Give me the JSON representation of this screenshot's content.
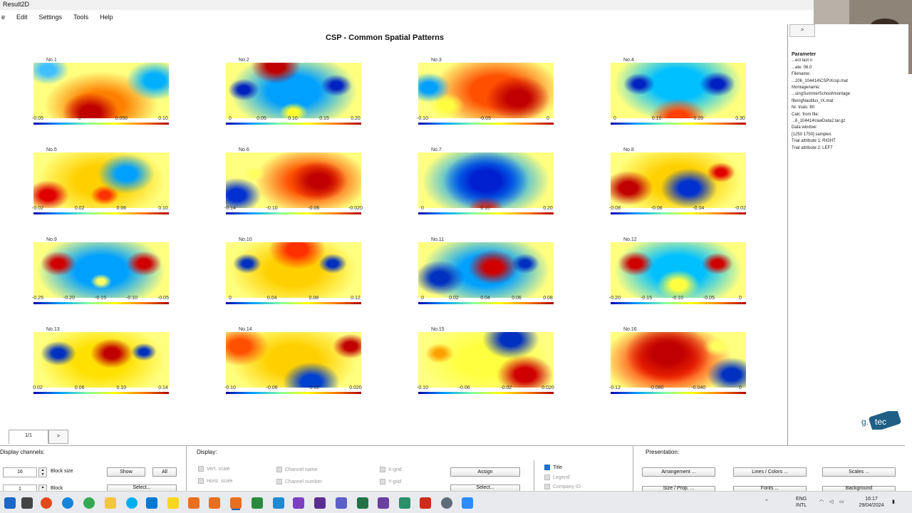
{
  "window": {
    "title": "Result2D"
  },
  "menu": [
    "e",
    "Edit",
    "Settings",
    "Tools",
    "Help"
  ],
  "main_title": "CSP - Common Spatial Patterns",
  "plots": [
    {
      "label": "No.1",
      "ticks": [
        "-0.05",
        "0",
        "0.050",
        "0.10"
      ]
    },
    {
      "label": "No.2",
      "ticks": [
        "0",
        "0.05",
        "0.10",
        "0.15",
        "0.20"
      ]
    },
    {
      "label": "No.3",
      "ticks": [
        "-0.10",
        "-0.05",
        "0"
      ]
    },
    {
      "label": "No.4",
      "ticks": [
        "0",
        "0.10",
        "0.20",
        "0.30"
      ]
    },
    {
      "label": "No.5",
      "ticks": [
        "-0.02",
        "0.02",
        "0.06",
        "0.10"
      ]
    },
    {
      "label": "No.6",
      "ticks": [
        "-0.14",
        "-0.10",
        "-0.06",
        "-0.020"
      ]
    },
    {
      "label": "No.7",
      "ticks": [
        "0",
        "0.10",
        "0.20"
      ]
    },
    {
      "label": "No.8",
      "ticks": [
        "-0.08",
        "-0.06",
        "-0.04",
        "-0.02"
      ]
    },
    {
      "label": "No.9",
      "ticks": [
        "-0.25",
        "-0.20",
        "-0.15",
        "-0.10",
        "-0.05"
      ]
    },
    {
      "label": "No.10",
      "ticks": [
        "0",
        "0.04",
        "0.08",
        "0.12"
      ]
    },
    {
      "label": "No.11",
      "ticks": [
        "0",
        "0.02",
        "0.04",
        "0.06",
        "0.08"
      ]
    },
    {
      "label": "No.12",
      "ticks": [
        "-0.20",
        "-0.15",
        "-0.10",
        "-0.05",
        "0"
      ]
    },
    {
      "label": "No.13",
      "ticks": [
        "0.02",
        "0.06",
        "0.10",
        "0.14"
      ]
    },
    {
      "label": "No.14",
      "ticks": [
        "-0.10",
        "-0.06",
        "-0.02",
        "0.020"
      ]
    },
    {
      "label": "No.15",
      "ticks": [
        "-0.10",
        "-0.06",
        "-0.02",
        "0.020"
      ]
    },
    {
      "label": "No.16",
      "ticks": [
        "-0.12",
        "-0.080",
        "-0.040",
        "0"
      ]
    }
  ],
  "right_panel": {
    "expand_label": ">",
    "lines": [
      "Parameter",
      "...ect last n",
      "...ate: 06.0",
      "Filename:",
      "...206_104414\\CSP\\Xcsp.mat",
      "Montagename:",
      "...singSummerSchool\\montage",
      "files\\gNautilus_rX.mat",
      "Nr. trials: 80",
      "Calc. from file:",
      "...6_104414\\rawData2.tar.gz",
      "Data window:",
      "[1250 1750]  samples",
      "Trial attribute 1: RIGHT",
      "Trial attribute 2: LEFT"
    ]
  },
  "logo": {
    "text": "g.tec"
  },
  "pager": {
    "tab": "1/1",
    "next": ">"
  },
  "display_channels": {
    "title": "Display channels:",
    "block_size_value": "16",
    "block_size_label": "Block size",
    "block_value": "1",
    "block_label": "Block",
    "show": "Show",
    "all": "All",
    "select": "Select..."
  },
  "display": {
    "title": "Display:",
    "vert_scale": "Vert. scale",
    "horiz_scale": "Horiz. scale",
    "channel_name": "Channel name",
    "channel_number": "Channel number",
    "x_grid": "X-grid",
    "y_grid": "Y-grid",
    "assign": "Assign",
    "select": "Select...",
    "title_chk": "Title",
    "legend": "Legend",
    "company_id": "Company ID"
  },
  "presentation": {
    "title": "Presentation:",
    "arrangement": "Arrangement ...",
    "lines_colors": "Lines / Colors ...",
    "scales": "Scales ...",
    "size_prop": "Size / Prop. ...",
    "fonts": "Fonts ...",
    "background": "Background"
  },
  "taskbar": {
    "lang": "ENG",
    "lang2": "INTL",
    "time": "16:17",
    "date": "29/04/2024"
  },
  "colors": {
    "accent": "#1e6fd9",
    "logo_bg": "#1f5f85"
  }
}
